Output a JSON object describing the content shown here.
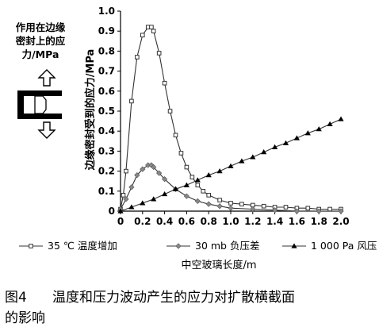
{
  "side_label": [
    "作用在边缘",
    "密封上的应",
    "力/MPa"
  ],
  "caption": {
    "number": "图4",
    "text_line1": "温度和压力波动产生的应力对扩散横截面",
    "text_line2": "的影响"
  },
  "colors": {
    "axis": "#000000",
    "series": "#333333",
    "grid": "none"
  },
  "icons": [
    "arrow-up-icon",
    "arrow-down-icon",
    "edge-seal-icon"
  ],
  "chart_data": {
    "type": "line",
    "ylabel": "边缘密封受到的应力/MPa",
    "xlabel": "中空玻璃长度/m",
    "xlim": [
      0,
      2.0
    ],
    "ylim": [
      0,
      1.0
    ],
    "xticks": [
      "0",
      "0.2",
      "0.4",
      "0.6",
      "0.8",
      "1.0",
      "1.2",
      "1.4",
      "1.6",
      "1.8",
      "2.0"
    ],
    "yticks": [
      "0",
      "0.1",
      "0.2",
      "0.3",
      "0.4",
      "0.5",
      "0.6",
      "0.7",
      "0.8",
      "0.9",
      "1.0"
    ],
    "grid": false,
    "legend_position": "bottom",
    "series": [
      {
        "name": "35 ℃ 温度增加",
        "marker": "square",
        "x": [
          0.0,
          0.025,
          0.05,
          0.1,
          0.15,
          0.2,
          0.25,
          0.28,
          0.3,
          0.35,
          0.4,
          0.45,
          0.5,
          0.55,
          0.6,
          0.65,
          0.7,
          0.75,
          0.8,
          0.9,
          1.0,
          1.1,
          1.2,
          1.3,
          1.4,
          1.5,
          1.6,
          1.7,
          1.8,
          1.9,
          2.0
        ],
        "y": [
          0.01,
          0.08,
          0.2,
          0.55,
          0.77,
          0.88,
          0.92,
          0.92,
          0.9,
          0.79,
          0.64,
          0.5,
          0.38,
          0.29,
          0.22,
          0.17,
          0.13,
          0.1,
          0.08,
          0.055,
          0.04,
          0.035,
          0.03,
          0.025,
          0.02,
          0.02,
          0.015,
          0.015,
          0.01,
          0.01,
          0.01
        ]
      },
      {
        "name": "30 mb 负压差",
        "marker": "diamond",
        "x": [
          0.0,
          0.05,
          0.1,
          0.15,
          0.2,
          0.25,
          0.28,
          0.3,
          0.35,
          0.4,
          0.5,
          0.6,
          0.7,
          0.8,
          0.9,
          1.0,
          1.2,
          1.4,
          1.6,
          1.8,
          2.0
        ],
        "y": [
          0.01,
          0.06,
          0.12,
          0.18,
          0.21,
          0.23,
          0.23,
          0.22,
          0.19,
          0.16,
          0.11,
          0.075,
          0.05,
          0.035,
          0.025,
          0.015,
          0.01,
          0.005,
          0.0,
          0.0,
          0.0
        ]
      },
      {
        "name": "1 000 Pa 风压",
        "marker": "triangle",
        "x": [
          0.0,
          0.1,
          0.2,
          0.3,
          0.4,
          0.5,
          0.6,
          0.7,
          0.8,
          0.9,
          1.0,
          1.1,
          1.2,
          1.3,
          1.4,
          1.5,
          1.6,
          1.7,
          1.8,
          1.9,
          2.0
        ],
        "y": [
          0.0,
          0.02,
          0.04,
          0.06,
          0.085,
          0.11,
          0.13,
          0.155,
          0.18,
          0.2,
          0.225,
          0.25,
          0.27,
          0.295,
          0.32,
          0.34,
          0.365,
          0.39,
          0.41,
          0.435,
          0.46
        ]
      }
    ]
  }
}
